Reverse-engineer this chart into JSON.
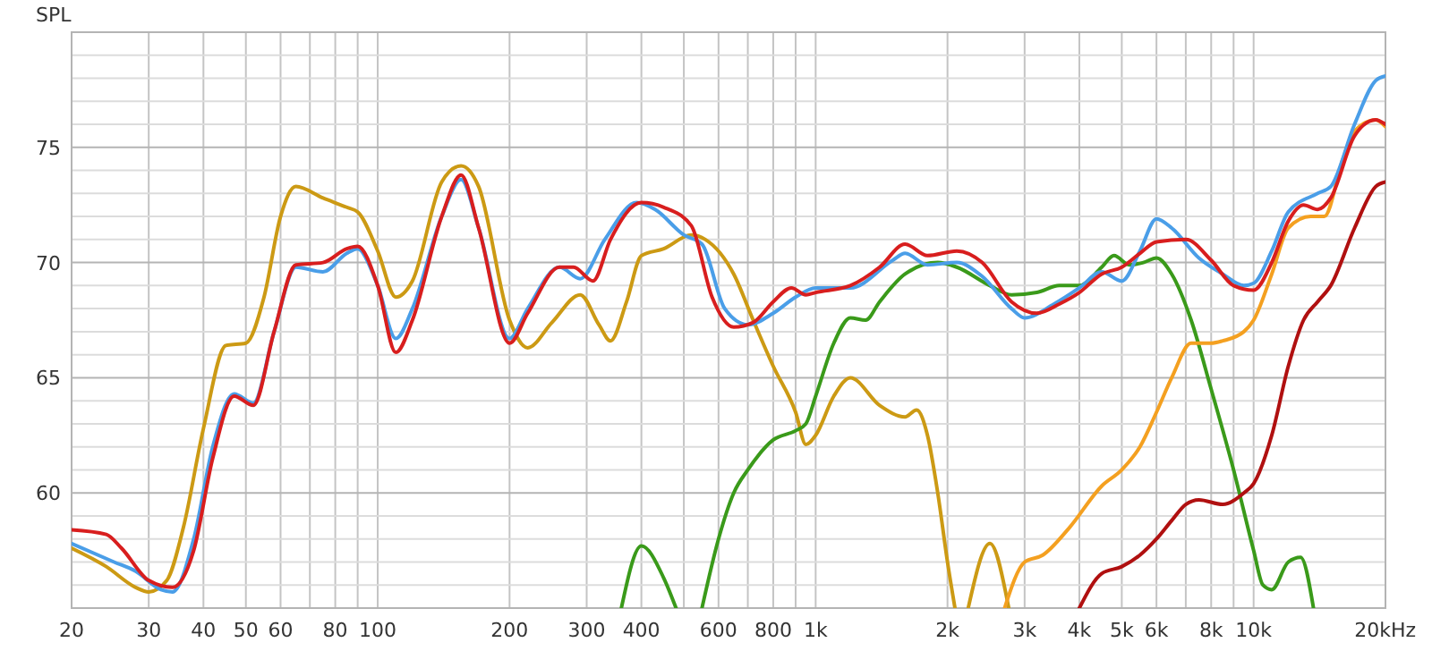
{
  "chart_data": {
    "type": "line",
    "ylabel": "SPL",
    "log": "x",
    "grid": true,
    "line_style": "solid",
    "marker": "none",
    "xlim": [
      20,
      20000
    ],
    "ylim": [
      55,
      80
    ],
    "xticks": [
      20,
      30,
      40,
      50,
      60,
      {
        "value": 70,
        "label": null
      },
      80,
      {
        "value": 90,
        "label": null
      },
      100,
      200,
      300,
      400,
      {
        "value": 500,
        "label": null
      },
      600,
      {
        "value": 700,
        "label": null
      },
      800,
      {
        "value": 900,
        "label": null
      },
      {
        "value": 1000,
        "label": "1k"
      },
      {
        "value": 2000,
        "label": "2k"
      },
      {
        "value": 3000,
        "label": "3k"
      },
      {
        "value": 4000,
        "label": "4k"
      },
      {
        "value": 5000,
        "label": "5k"
      },
      {
        "value": 6000,
        "label": "6k"
      },
      {
        "value": 7000,
        "label": null
      },
      {
        "value": 8000,
        "label": "8k"
      },
      {
        "value": 9000,
        "label": null
      },
      {
        "value": 10000,
        "label": "10k"
      },
      {
        "value": 20000,
        "label": "20k"
      }
    ],
    "xlabel": "Hz",
    "yticks": [
      {
        "value": 55,
        "label": null
      },
      {
        "value": 56,
        "label": null
      },
      {
        "value": 57,
        "label": null
      },
      {
        "value": 58,
        "label": null
      },
      {
        "value": 59,
        "label": null
      },
      60,
      {
        "value": 61,
        "label": null
      },
      {
        "value": 62,
        "label": null
      },
      {
        "value": 63,
        "label": null
      },
      {
        "value": 64,
        "label": null
      },
      65,
      {
        "value": 66,
        "label": null
      },
      {
        "value": 67,
        "label": null
      },
      {
        "value": 68,
        "label": null
      },
      {
        "value": 69,
        "label": null
      },
      70,
      {
        "value": 71,
        "label": null
      },
      {
        "value": 72,
        "label": null
      },
      {
        "value": 73,
        "label": null
      },
      {
        "value": 74,
        "label": null
      },
      75,
      {
        "value": 76,
        "label": null
      },
      {
        "value": 77,
        "label": null
      },
      {
        "value": 78,
        "label": null
      },
      {
        "value": 79,
        "label": null
      },
      {
        "value": 80,
        "label": null
      }
    ],
    "series": [
      {
        "color": "#cc9a14",
        "x": [
          20,
          24,
          28,
          30,
          33,
          36,
          40,
          45,
          50,
          55,
          60,
          65,
          75,
          85,
          90,
          100,
          110,
          120,
          140,
          155,
          170,
          200,
          220,
          250,
          290,
          320,
          340,
          370,
          400,
          450,
          520,
          560,
          650,
          720,
          800,
          900,
          950,
          1000,
          1100,
          1200,
          1400,
          1600,
          1700,
          1800,
          1900,
          2000,
          2080,
          2150,
          2230,
          2500,
          2760
        ],
        "values": [
          57.6,
          56.8,
          55.9,
          55.7,
          56.2,
          58.5,
          62.8,
          66.4,
          66.5,
          68.5,
          72,
          73.3,
          72.8,
          72.4,
          72.2,
          70.5,
          68.5,
          69.2,
          73.5,
          74.2,
          73.3,
          67.5,
          66.3,
          67.4,
          68.6,
          67.3,
          66.6,
          68.3,
          70.3,
          70.6,
          71.2,
          71,
          69.5,
          67.5,
          65.5,
          63.5,
          62.1,
          62.5,
          64.2,
          65,
          63.8,
          63.3,
          63.6,
          62.5,
          60,
          57,
          55,
          null,
          55,
          57.8,
          55
        ]
      },
      {
        "color": "#3a9a1a",
        "x": [
          360,
          400,
          450,
          480,
          515,
          550,
          600,
          650,
          700,
          800,
          900,
          950,
          1000,
          1100,
          1200,
          1300,
          1400,
          1600,
          1900,
          2100,
          2500,
          2800,
          3200,
          3600,
          4000,
          4500,
          4800,
          5200,
          5600,
          6000,
          6500,
          7200,
          8000,
          9000,
          10000,
          10500,
          11000,
          12000,
          12800,
          13700
        ],
        "values": [
          55,
          57.7,
          56.3,
          55,
          null,
          55,
          58,
          60,
          61,
          62.3,
          62.7,
          63,
          64.2,
          66.5,
          67.6,
          67.5,
          68.3,
          69.5,
          70,
          69.8,
          69,
          68.6,
          68.7,
          69,
          69,
          69.8,
          70.3,
          69.9,
          70,
          70.2,
          69.5,
          67.5,
          64.5,
          61,
          57.5,
          56,
          55.8,
          57,
          57.2,
          55
        ]
      },
      {
        "color": "#f4a020",
        "x": [
          2700,
          3000,
          3300,
          3800,
          4500,
          5000,
          5500,
          6000,
          6500,
          7200,
          8000,
          8500,
          9500,
          10000,
          11000,
          12000,
          13500,
          14500,
          16000,
          17000,
          19000,
          20000
        ],
        "values": [
          55,
          57,
          57.3,
          58.5,
          60.3,
          61,
          62,
          63.5,
          65,
          66.5,
          66.5,
          66.6,
          67,
          67.5,
          69.5,
          71.5,
          72,
          72,
          74.5,
          75.7,
          76.2,
          75.9
        ]
      },
      {
        "color": "#b01010",
        "x": [
          4000,
          4500,
          5000,
          5500,
          6000,
          6500,
          7000,
          7500,
          8500,
          9500,
          10000,
          11000,
          12000,
          13000,
          14000,
          15000,
          17000,
          19000,
          20000
        ],
        "values": [
          55,
          56.5,
          56.8,
          57.3,
          58,
          58.8,
          59.5,
          59.7,
          59.5,
          60,
          60.4,
          62.5,
          65.5,
          67.5,
          68.3,
          69,
          71.5,
          73.3,
          73.5
        ]
      },
      {
        "color": "#4a9ee8",
        "x": [
          20,
          25,
          28,
          32,
          34,
          38,
          42,
          47,
          52,
          58,
          65,
          75,
          85,
          90,
          100,
          110,
          120,
          140,
          155,
          170,
          200,
          220,
          260,
          290,
          330,
          390,
          430,
          500,
          550,
          620,
          700,
          800,
          900,
          1000,
          1200,
          1500,
          1600,
          1800,
          2100,
          2400,
          2800,
          3000,
          3500,
          4000,
          4500,
          5000,
          5500,
          6000,
          6500,
          7500,
          8500,
          9500,
          10000,
          11000,
          12000,
          14000,
          15000,
          17000,
          19000,
          20000
        ],
        "values": [
          57.8,
          57,
          56.6,
          55.8,
          55.7,
          58,
          62,
          64.3,
          63.9,
          67,
          69.8,
          69.6,
          70.4,
          70.6,
          69,
          66.7,
          68,
          72,
          73.6,
          71.5,
          66.7,
          68,
          69.8,
          69.3,
          71,
          72.6,
          72.3,
          71.2,
          70.8,
          68,
          67.3,
          67.8,
          68.5,
          68.9,
          68.9,
          70.1,
          70.4,
          69.9,
          70,
          69.4,
          68,
          67.6,
          68.2,
          68.9,
          69.6,
          69.2,
          70.5,
          71.9,
          71.5,
          70.2,
          69.5,
          69,
          69.1,
          70.5,
          72.2,
          73,
          73.3,
          76,
          77.9,
          78.1
        ]
      },
      {
        "color": "#d81e1e",
        "x": [
          20,
          24,
          26,
          30,
          34,
          38,
          42,
          47,
          52,
          58,
          65,
          75,
          85,
          90,
          100,
          110,
          120,
          140,
          155,
          170,
          200,
          220,
          260,
          280,
          310,
          340,
          400,
          450,
          520,
          580,
          650,
          720,
          800,
          880,
          950,
          1000,
          1200,
          1400,
          1600,
          1800,
          2100,
          2400,
          2800,
          3200,
          3600,
          4000,
          4500,
          5000,
          5500,
          6000,
          7000,
          8000,
          9000,
          10000,
          11000,
          12000,
          13000,
          14000,
          15000,
          17000,
          19000,
          20000
        ],
        "values": [
          58.4,
          58.2,
          57.6,
          56.2,
          55.9,
          57.5,
          61.5,
          64.2,
          63.8,
          67,
          69.9,
          70,
          70.6,
          70.7,
          69,
          66.1,
          67.5,
          72,
          73.8,
          71.5,
          66.5,
          67.8,
          69.8,
          69.8,
          69.2,
          71,
          72.6,
          72.4,
          71.6,
          68.5,
          67.2,
          67.4,
          68.3,
          68.9,
          68.6,
          68.7,
          69,
          69.8,
          70.8,
          70.3,
          70.5,
          70,
          68.3,
          67.8,
          68.2,
          68.7,
          69.5,
          69.8,
          70.4,
          70.9,
          71,
          70.1,
          69,
          68.8,
          70,
          71.8,
          72.5,
          72.3,
          72.8,
          75.5,
          76.2,
          76
        ]
      }
    ]
  }
}
